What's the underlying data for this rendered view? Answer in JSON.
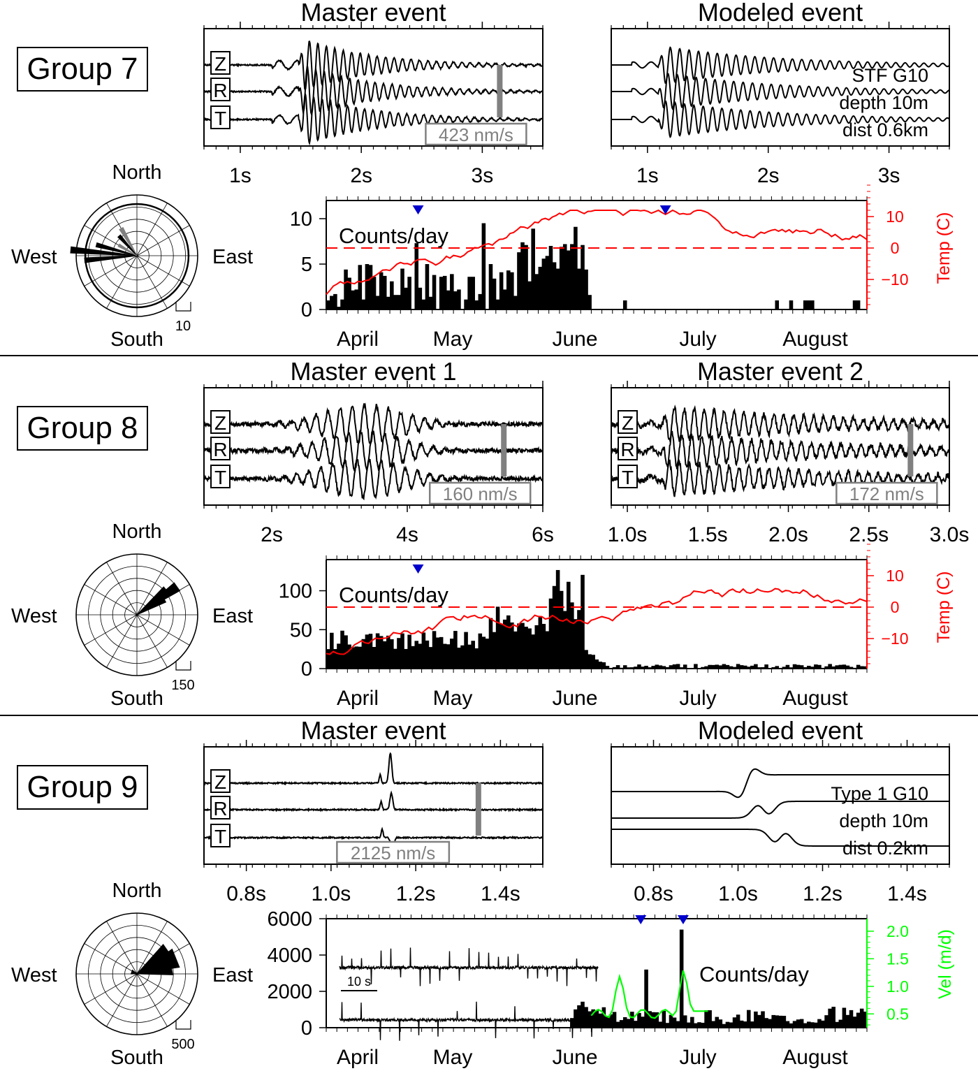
{
  "chart_data": [
    {
      "type": "line",
      "group": "Group 7",
      "panels": [
        {
          "title": "Master event",
          "component_labels": [
            "Z",
            "R",
            "T"
          ],
          "x_ticks": [
            1,
            2,
            3
          ],
          "x_tick_labels": [
            "1s",
            "2s",
            "3s"
          ],
          "xlim": [
            0.7,
            3.5
          ],
          "scale_label": "423 nm/s"
        },
        {
          "title": "Modeled event",
          "model_labels": [
            "STF G10",
            "depth 10m",
            "dist 0.6km"
          ],
          "x_ticks": [
            1,
            2,
            3
          ],
          "x_tick_labels": [
            "1s",
            "2s",
            "3s"
          ],
          "xlim": [
            0.7,
            3.5
          ]
        }
      ],
      "rose": {
        "north": "North",
        "south": "South",
        "west": "West",
        "east": "East",
        "scale_label": "10"
      },
      "histogram": {
        "series_label": "Counts/day",
        "y_ticks": [
          0,
          5,
          10
        ],
        "ylim": [
          0,
          12
        ],
        "right_axis_label": "Temp (C)",
        "right_ticks": [
          10,
          0,
          -10
        ],
        "right_tick_labels": [
          "10",
          "0",
          "−10"
        ],
        "month_labels": [
          "April",
          "May",
          "June",
          "July",
          "August"
        ]
      }
    },
    {
      "type": "line",
      "group": "Group 8",
      "panels": [
        {
          "title": "Master event 1",
          "component_labels": [
            "Z",
            "R",
            "T"
          ],
          "x_ticks": [
            2,
            4,
            6
          ],
          "x_tick_labels": [
            "2s",
            "4s",
            "6s"
          ],
          "xlim": [
            1.0,
            6.0
          ],
          "scale_label": "160 nm/s"
        },
        {
          "title": "Master event 2",
          "component_labels": [
            "Z",
            "R",
            "T"
          ],
          "x_ticks": [
            1.0,
            1.5,
            2.0,
            2.5,
            3.0
          ],
          "x_tick_labels": [
            "1.0s",
            "1.5s",
            "2.0s",
            "2.5s",
            "3.0s"
          ],
          "xlim": [
            0.9,
            3.0
          ],
          "scale_label": "172 nm/s"
        }
      ],
      "rose": {
        "north": "North",
        "south": "South",
        "west": "West",
        "east": "East",
        "scale_label": "150"
      },
      "histogram": {
        "series_label": "Counts/day",
        "y_ticks": [
          0,
          50,
          100
        ],
        "ylim": [
          0,
          140
        ],
        "right_axis_label": "Temp (C)",
        "right_ticks": [
          10,
          0,
          -10
        ],
        "right_tick_labels": [
          "10",
          "0",
          "−10"
        ],
        "month_labels": [
          "April",
          "May",
          "June",
          "July",
          "August"
        ]
      }
    },
    {
      "type": "line",
      "group": "Group 9",
      "panels": [
        {
          "title": "Master event",
          "component_labels": [
            "Z",
            "R",
            "T"
          ],
          "x_ticks": [
            0.8,
            1.0,
            1.2,
            1.4
          ],
          "x_tick_labels": [
            "0.8s",
            "1.0s",
            "1.2s",
            "1.4s"
          ],
          "xlim": [
            0.7,
            1.5
          ],
          "scale_label": "2125 nm/s"
        },
        {
          "title": "Modeled event",
          "model_labels": [
            "Type 1 G10",
            "depth 10m",
            "dist 0.2km"
          ],
          "x_ticks": [
            0.8,
            1.0,
            1.2,
            1.4
          ],
          "x_tick_labels": [
            "0.8s",
            "1.0s",
            "1.2s",
            "1.4s"
          ],
          "xlim": [
            0.7,
            1.5
          ]
        }
      ],
      "rose": {
        "north": "North",
        "south": "South",
        "west": "West",
        "east": "East",
        "scale_label": "500"
      },
      "histogram": {
        "series_label": "Counts/day",
        "y_ticks": [
          0,
          2000,
          4000,
          6000
        ],
        "ylim": [
          0,
          6000
        ],
        "right_axis_label": "Vel (m/d)",
        "right_ticks": [
          0.5,
          1.0,
          1.5,
          2.0
        ],
        "right_tick_labels": [
          "0.5",
          "1.0",
          "1.5",
          "2.0"
        ],
        "month_labels": [
          "April",
          "May",
          "June",
          "July",
          "August"
        ],
        "inset_scale_label": "10 s"
      }
    }
  ]
}
